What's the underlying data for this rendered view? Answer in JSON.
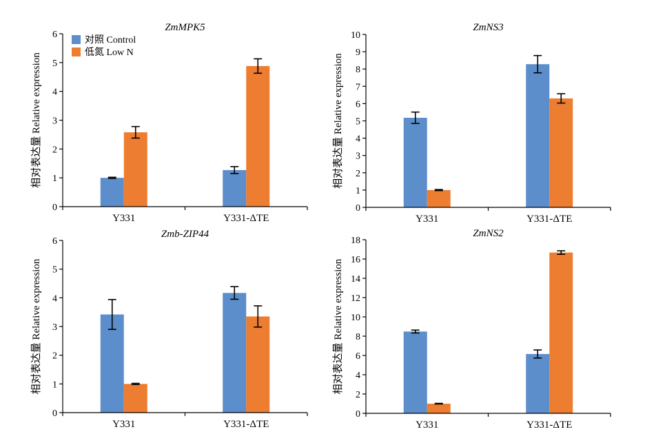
{
  "colors": {
    "control": "#5b8ecb",
    "low_n": "#ed7d31",
    "axis": "#000000",
    "error": "#000000"
  },
  "legend": {
    "control": "对照 Control",
    "low_n": "低氮 Low N"
  },
  "chart_data": [
    {
      "type": "bar",
      "title": "ZmMPK5",
      "ylabel": "相对表达量 Relative expression",
      "categories": [
        "Y331",
        "Y331-ΔTE"
      ],
      "series": [
        {
          "name": "对照 Control",
          "values": [
            1.0,
            1.27
          ],
          "errors": [
            0.02,
            0.12
          ]
        },
        {
          "name": "低氮 Low N",
          "values": [
            2.58,
            4.88
          ],
          "errors": [
            0.2,
            0.25
          ]
        }
      ],
      "ylim": [
        0,
        6
      ],
      "yticks": [
        "0",
        "1",
        "2",
        "3",
        "4",
        "5",
        "6"
      ]
    },
    {
      "type": "bar",
      "title": "ZmNS3",
      "ylabel": "相对表达量 Relative expression",
      "categories": [
        "Y331",
        "Y331-ΔTE"
      ],
      "series": [
        {
          "name": "对照 Control",
          "values": [
            5.18,
            8.28
          ],
          "errors": [
            0.33,
            0.5
          ]
        },
        {
          "name": "低氮 Low N",
          "values": [
            1.0,
            6.3
          ],
          "errors": [
            0.03,
            0.27
          ]
        }
      ],
      "ylim": [
        0,
        10
      ],
      "yticks": [
        "0",
        "1",
        "2",
        "3",
        "4",
        "5",
        "6",
        "7",
        "8",
        "9",
        "10"
      ]
    },
    {
      "type": "bar",
      "title": "Zmb-ZIP44",
      "ylabel": "相对表达量 Relative expression",
      "categories": [
        "Y331",
        "Y331-ΔTE"
      ],
      "series": [
        {
          "name": "对照 Control",
          "values": [
            3.42,
            4.17
          ],
          "errors": [
            0.52,
            0.22
          ]
        },
        {
          "name": "低氮 Low N",
          "values": [
            1.0,
            3.35
          ],
          "errors": [
            0.02,
            0.37
          ]
        }
      ],
      "ylim": [
        0,
        6
      ],
      "yticks": [
        "0",
        "1",
        "2",
        "3",
        "4",
        "5",
        "6"
      ]
    },
    {
      "type": "bar",
      "title": "ZmNS2",
      "ylabel": "相对表达量 Relative expression",
      "categories": [
        "Y331",
        "Y331-ΔTE"
      ],
      "series": [
        {
          "name": "对照 Control",
          "values": [
            8.48,
            6.15
          ],
          "errors": [
            0.15,
            0.42
          ]
        },
        {
          "name": "低氮 Low N",
          "values": [
            1.0,
            16.67
          ],
          "errors": [
            0.03,
            0.18
          ]
        }
      ],
      "ylim": [
        0,
        18
      ],
      "yticks": [
        "0",
        "2",
        "4",
        "6",
        "8",
        "10",
        "12",
        "14",
        "16",
        "18"
      ]
    }
  ]
}
